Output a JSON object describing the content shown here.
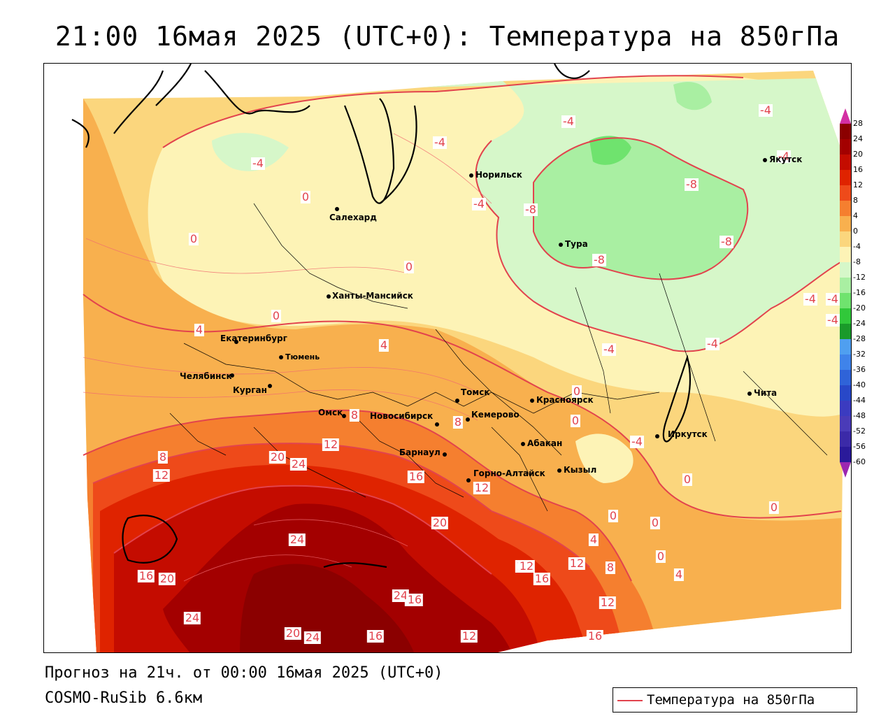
{
  "title": "21:00 16мая 2025 (UTC+0): Температура на 850гПа",
  "footer": {
    "forecast": "Прогноз на 21ч. от 00:00 16мая 2025 (UTC+0)",
    "model": "COSMO-RuSib 6.6км"
  },
  "legend": {
    "label": "Температура на 850гПа",
    "line_color": "#e2434d"
  },
  "scale": {
    "labels": [
      "28",
      "24",
      "20",
      "16",
      "12",
      "8",
      "4",
      "0",
      "-4",
      "-8",
      "-12",
      "-16",
      "-20",
      "-24",
      "-28",
      "-32",
      "-36",
      "-40",
      "-44",
      "-48",
      "-52",
      "-56",
      "-60"
    ],
    "colors": [
      "#8b0000",
      "#a30000",
      "#c40c00",
      "#df2300",
      "#ee4a1a",
      "#f57f2f",
      "#f8b04e",
      "#fbd67d",
      "#fdf3b6",
      "#d6f7c9",
      "#a9efa2",
      "#6fe36e",
      "#31c83a",
      "#1a9a2a",
      "#4f9ff0",
      "#3f83ea",
      "#2f63d8",
      "#2848c8",
      "#3b3bc0",
      "#4a3bb8",
      "#3b2aa8",
      "#2a1a9a",
      "#201090"
    ],
    "top_arrow_color": "#d32fa3",
    "bottom_arrow_color": "#9c27b0"
  },
  "cities": [
    {
      "name": "Норильск"
    },
    {
      "name": "Якутск"
    },
    {
      "name": "Салехард"
    },
    {
      "name": "Тура"
    },
    {
      "name": "Ханты-Мансийск"
    },
    {
      "name": "Екатеринбург"
    },
    {
      "name": "Тюмень"
    },
    {
      "name": "Челябинск"
    },
    {
      "name": "Курган"
    },
    {
      "name": "Омск"
    },
    {
      "name": "Новосибирск"
    },
    {
      "name": "Томск"
    },
    {
      "name": "Кемерово"
    },
    {
      "name": "Красноярск"
    },
    {
      "name": "Барнаул"
    },
    {
      "name": "Абакан"
    },
    {
      "name": "Иркутск"
    },
    {
      "name": "Горно-Алтайск"
    },
    {
      "name": "Кызыл"
    },
    {
      "name": "Чита"
    }
  ],
  "contour_labels": [
    "-4",
    "-4",
    "-4",
    "-4",
    "-4",
    "-8",
    "-8",
    "-8",
    "-8",
    "-4",
    "0",
    "0",
    "0",
    "0",
    "-4",
    "4",
    "4",
    "0",
    "0",
    "-4",
    "-4",
    "-4",
    "-4",
    "-4",
    "8",
    "12",
    "8",
    "12",
    "20",
    "24",
    "12",
    "16",
    "12",
    "16",
    "0",
    "0",
    "0",
    "0",
    "4",
    "4",
    "0",
    "8",
    "24",
    "20",
    "16",
    "20",
    "12",
    "16",
    "12",
    "12",
    "24",
    "24",
    "16",
    "20",
    "24",
    "16",
    "12",
    "16",
    "8"
  ]
}
